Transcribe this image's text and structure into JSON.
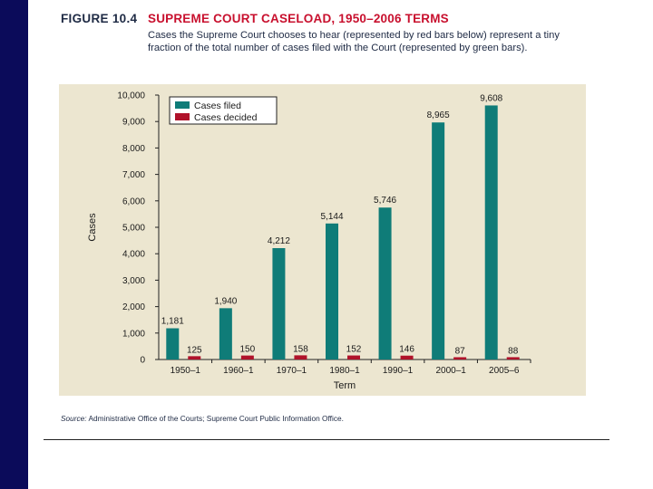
{
  "figure": {
    "label": "FIGURE 10.4",
    "title": "SUPREME COURT CASELOAD, 1950–2006 TERMS",
    "caption": "Cases the Supreme Court chooses to hear (represented by red bars below) represent a tiny fraction of the total number of cases filed with the Court (represented by green bars)."
  },
  "source": {
    "lead": "Source:",
    "text": " Administrative Office of the Courts; Supreme Court Public Information Office."
  },
  "colors": {
    "filed": "#0f7c78",
    "decided": "#b0122a",
    "panel": "#ece6d0",
    "sidebar": "#0b0b5a"
  },
  "chart_data": {
    "type": "bar",
    "xlabel": "Term",
    "ylabel": "Cases",
    "ylim": [
      0,
      10000
    ],
    "yticks": [
      0,
      1000,
      2000,
      3000,
      4000,
      5000,
      6000,
      7000,
      8000,
      9000,
      10000
    ],
    "ytick_labels": [
      "0",
      "1,000",
      "2,000",
      "3,000",
      "4,000",
      "5,000",
      "6,000",
      "7,000",
      "8,000",
      "9,000",
      "10,000"
    ],
    "categories": [
      "1950–1",
      "1960–1",
      "1970–1",
      "1980–1",
      "1990–1",
      "2000–1",
      "2005–6"
    ],
    "series": [
      {
        "name": "Cases filed",
        "values": [
          1181,
          1940,
          4212,
          5144,
          5746,
          8965,
          9608
        ],
        "labels": [
          "1,181",
          "1,940",
          "4,212",
          "5,144",
          "5,746",
          "8,965",
          "9,608"
        ]
      },
      {
        "name": "Cases decided",
        "values": [
          125,
          150,
          158,
          152,
          146,
          87,
          88
        ],
        "labels": [
          "125",
          "150",
          "158",
          "152",
          "146",
          "87",
          "88"
        ]
      }
    ],
    "legend": "top-left",
    "grid": false
  }
}
